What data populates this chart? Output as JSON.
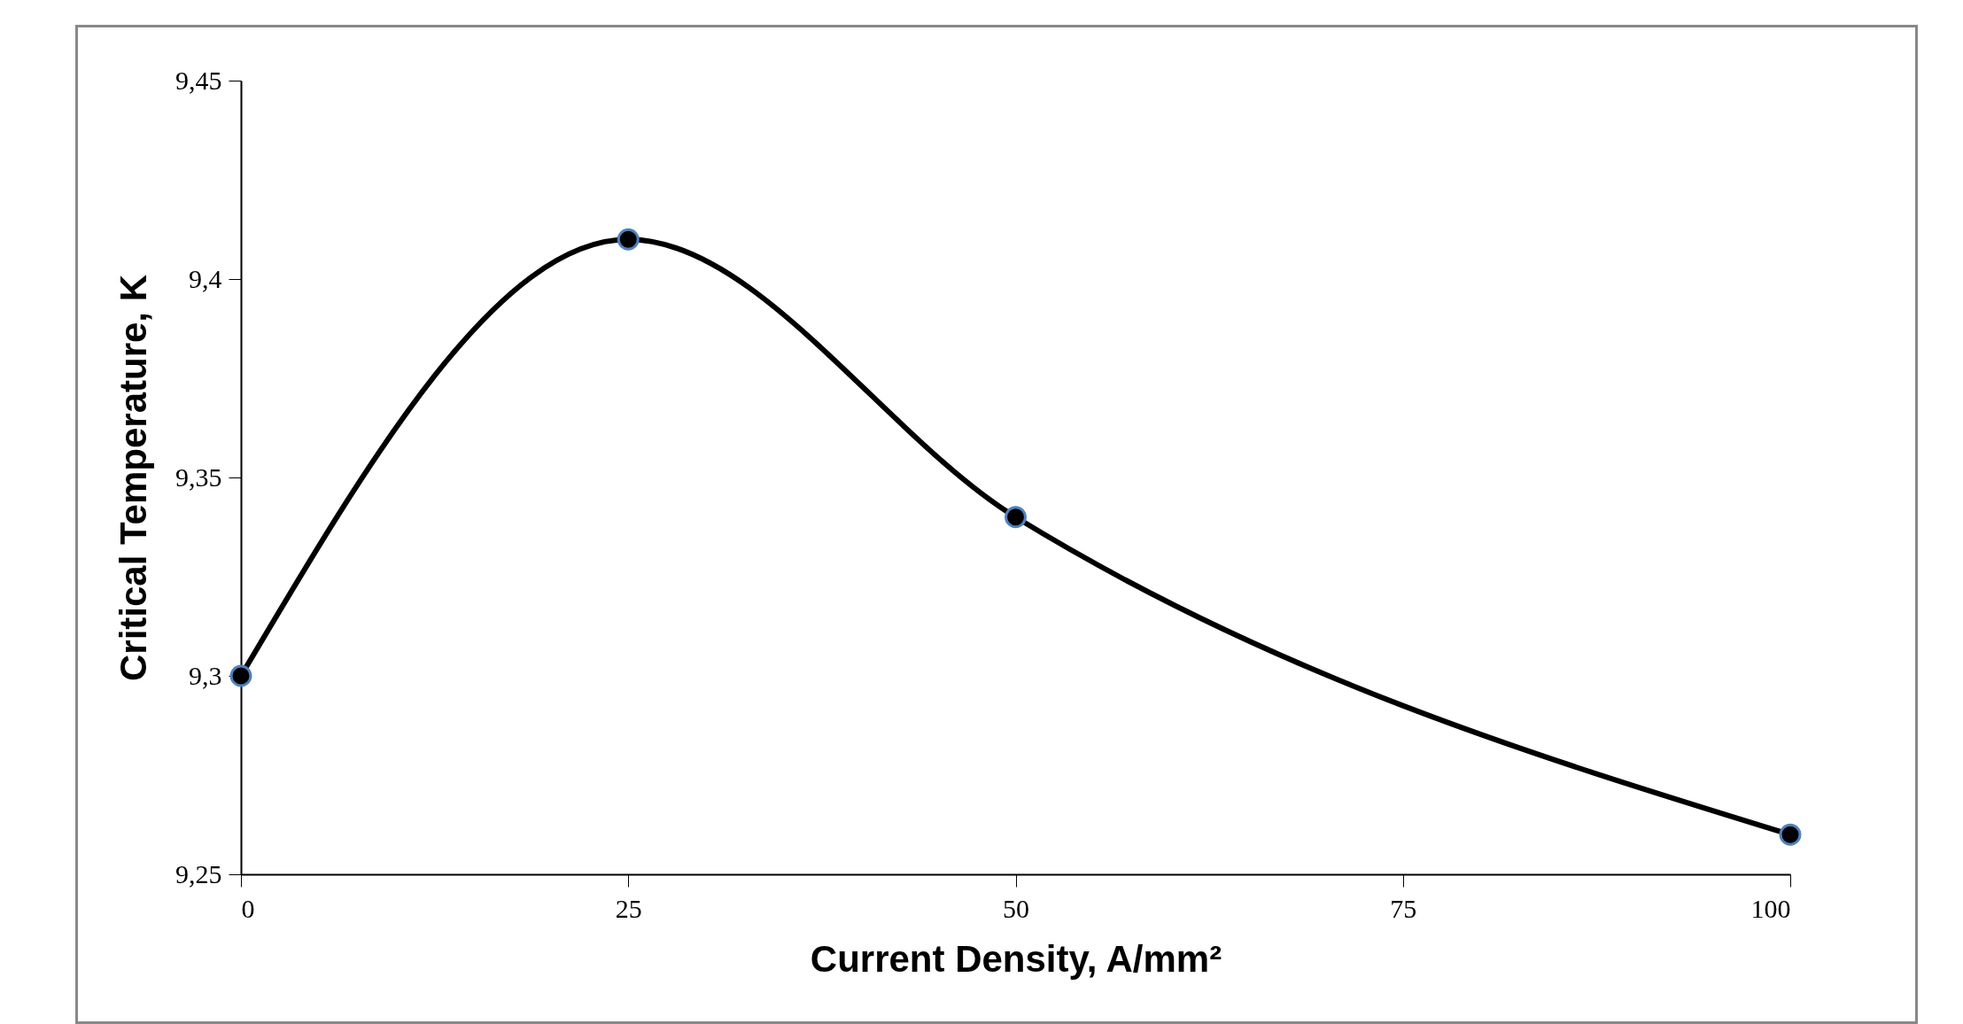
{
  "chart_data": {
    "type": "line",
    "xlabel": "Current Density, A/mm²",
    "ylabel": "Critical Temperature, K",
    "x": [
      0,
      25,
      50,
      100
    ],
    "series": [
      {
        "color": "#000000",
        "values": [
          9.3,
          9.41,
          9.34,
          9.26
        ]
      }
    ],
    "xlim": [
      0,
      100
    ],
    "xticks": [
      0,
      25,
      50,
      75,
      100
    ],
    "ylim": [
      9.25,
      9.45
    ],
    "yticks": [
      {
        "value": 9.25,
        "label": "9,25"
      },
      {
        "value": 9.3,
        "label": "9,3"
      },
      {
        "value": 9.35,
        "label": "9,35"
      },
      {
        "value": 9.4,
        "label": "9,4"
      },
      {
        "value": 9.45,
        "label": "9,45"
      }
    ],
    "marker": "circle",
    "line_style": "solid"
  }
}
